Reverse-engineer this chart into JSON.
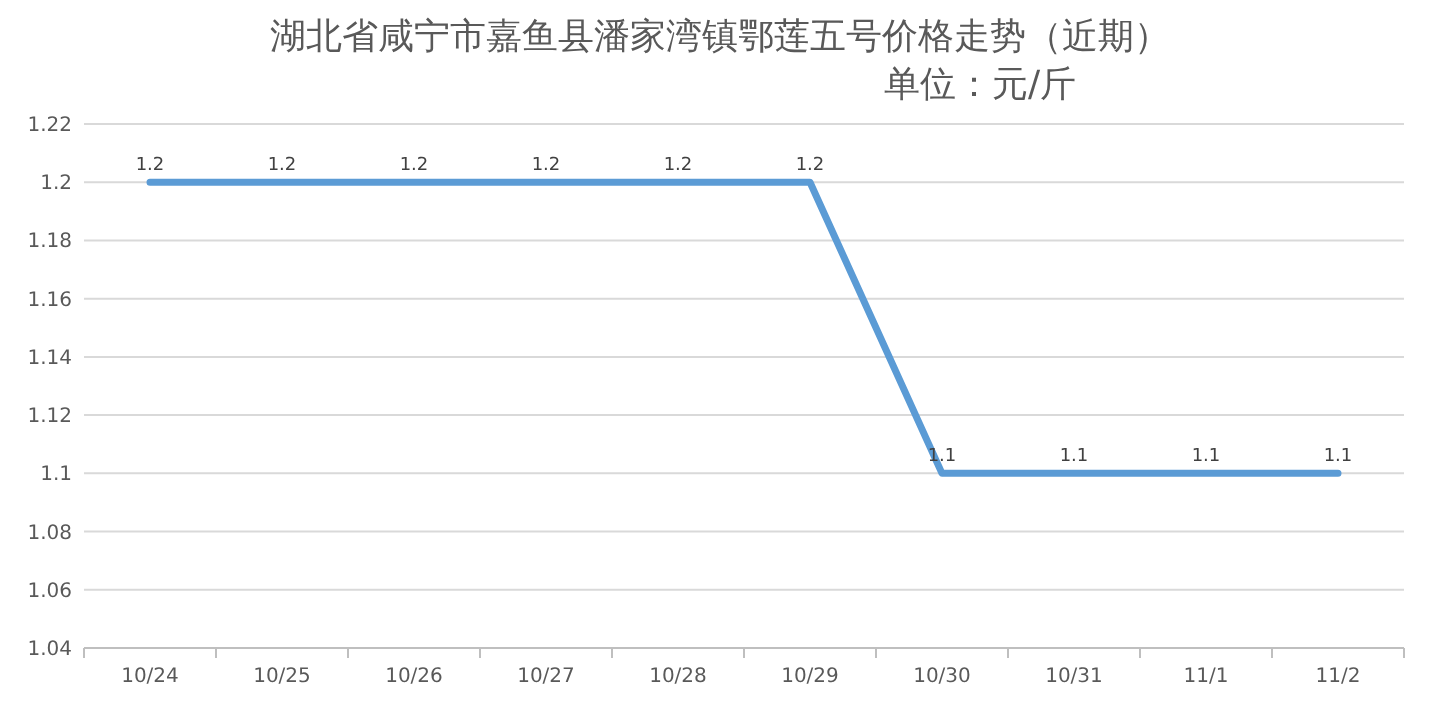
{
  "chart_data": {
    "type": "line",
    "title": "湖北省咸宁市嘉鱼县潘家湾镇鄂莲五号价格走势（近期）",
    "subtitle": "单位：元/斤",
    "categories": [
      "10/24",
      "10/25",
      "10/26",
      "10/27",
      "10/28",
      "10/29",
      "10/30",
      "10/31",
      "11/1",
      "11/2"
    ],
    "series": [
      {
        "color": "#5b9bd5",
        "values": [
          1.2,
          1.2,
          1.2,
          1.2,
          1.2,
          1.2,
          1.1,
          1.1,
          1.1,
          1.1
        ]
      }
    ],
    "ylim": [
      1.04,
      1.22
    ],
    "yticks": [
      1.04,
      1.06,
      1.08,
      1.1,
      1.12,
      1.14,
      1.16,
      1.18,
      1.2,
      1.22
    ],
    "grid": "y",
    "data_labels": true,
    "marker": "none",
    "line_style": "solid"
  }
}
